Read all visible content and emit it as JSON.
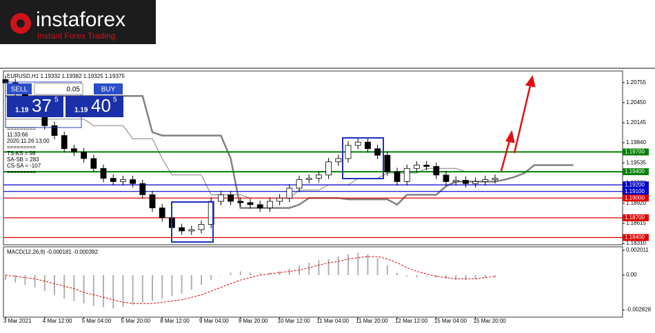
{
  "header": {
    "brand": "instaforex",
    "tagline": "Instant Forex Trading"
  },
  "trade_panel": {
    "sell": "SELL",
    "lot": "0.05",
    "buy": "BUY",
    "bid_big": "1.19",
    "bid_pips": "37",
    "bid_frac": "5",
    "ask_big": "1.19",
    "ask_pips": "40",
    "ask_frac": "5"
  },
  "info_lines": [
    "=========",
    "11:33:66",
    "2020.11.26 13:00",
    "=========",
    "TS-KS = 98",
    "SA-SB = 283",
    "CS-SA = -107",
    "========="
  ],
  "chart_data": {
    "type": "candlestick",
    "title": "EURUSD,H1  1.19332 1.19382 1.19325 1.19375",
    "categories": [
      "3 Mar 2021",
      null,
      null,
      null,
      "4 Mar 12:00",
      null,
      null,
      null,
      "5 Mar 04:00",
      null,
      null,
      null,
      "5 Mar 20:00",
      null,
      null,
      null,
      "8 Mar 12:00",
      null,
      null,
      null,
      "9 Mar 04:00",
      null,
      null,
      null,
      "9 Mar 20:00",
      null,
      null,
      null,
      "10 Mar 12:00",
      null,
      null,
      null,
      "11 Mar 04:00",
      null,
      null,
      null,
      "11 Mar 20:00",
      null,
      null,
      null,
      "12 Mar 12:00",
      null,
      null,
      null,
      "15 Mar 04:00",
      null,
      null,
      null,
      "15 Mar 20:00",
      null,
      null,
      null,
      null,
      null,
      null,
      null,
      null,
      null,
      null
    ],
    "open": [
      1.208,
      1.2075,
      1.206,
      1.2045,
      1.203,
      1.201,
      1.1995,
      1.1975,
      1.197,
      1.196,
      1.1945,
      1.193,
      1.1925,
      1.1928,
      1.1922,
      1.1905,
      1.1885,
      1.187,
      1.1855,
      1.185,
      1.1852,
      1.186,
      1.1895,
      1.1905,
      1.1895,
      1.1893,
      1.189,
      1.1885,
      1.1895,
      1.19,
      1.1915,
      1.1928,
      1.193,
      1.1935,
      1.1955,
      1.196,
      1.198,
      1.1985,
      1.1975,
      1.1965,
      1.194,
      1.1925,
      1.1945,
      1.195,
      1.1948,
      1.1935,
      1.1925,
      1.1927,
      1.1922,
      1.1925,
      1.1928,
      null,
      null,
      null,
      null,
      null,
      null,
      null,
      null
    ],
    "high": [
      1.2086,
      1.2081,
      1.2066,
      1.2051,
      1.2036,
      1.2016,
      1.2001,
      1.1981,
      1.1976,
      1.1966,
      1.1951,
      1.1936,
      1.1934,
      1.1934,
      1.1928,
      1.1911,
      1.1891,
      1.1876,
      1.1861,
      1.1858,
      1.1866,
      1.1901,
      1.1911,
      1.1911,
      1.1901,
      1.1899,
      1.1896,
      1.1901,
      1.1906,
      1.1921,
      1.1934,
      1.1936,
      1.1941,
      1.1961,
      1.1966,
      1.1986,
      1.1991,
      1.1991,
      1.1981,
      1.1971,
      1.1946,
      1.1951,
      1.1956,
      1.1956,
      1.1954,
      1.1941,
      1.1933,
      1.1933,
      1.1931,
      1.1934,
      1.1936,
      null,
      null,
      null,
      null,
      null,
      null,
      null,
      null
    ],
    "low": [
      1.2069,
      1.2054,
      1.2039,
      1.2024,
      1.2004,
      1.1989,
      1.1969,
      1.1964,
      1.1954,
      1.1939,
      1.1924,
      1.1919,
      1.1919,
      1.1916,
      1.1899,
      1.1879,
      1.1864,
      1.1849,
      1.1844,
      1.1844,
      1.1846,
      1.1854,
      1.1889,
      1.1889,
      1.1887,
      1.1884,
      1.1879,
      1.1879,
      1.1889,
      1.1894,
      1.1909,
      1.1922,
      1.1924,
      1.1929,
      1.1949,
      1.1954,
      1.1974,
      1.1969,
      1.1959,
      1.1934,
      1.1919,
      1.1919,
      1.1939,
      1.1942,
      1.1929,
      1.1919,
      1.1919,
      1.1916,
      1.1916,
      1.1919,
      1.1922,
      null,
      null,
      null,
      null,
      null,
      null,
      null,
      null
    ],
    "close": [
      1.2075,
      1.206,
      1.2045,
      1.203,
      1.201,
      1.1995,
      1.1975,
      1.197,
      1.196,
      1.1945,
      1.193,
      1.1925,
      1.1928,
      1.1922,
      1.1905,
      1.1885,
      1.187,
      1.1855,
      1.185,
      1.1852,
      1.186,
      1.1895,
      1.1905,
      1.1895,
      1.1893,
      1.189,
      1.1885,
      1.1895,
      1.19,
      1.1915,
      1.1928,
      1.193,
      1.1935,
      1.1955,
      1.196,
      1.198,
      1.1985,
      1.1975,
      1.1965,
      1.194,
      1.1925,
      1.1945,
      1.195,
      1.1948,
      1.1935,
      1.1925,
      1.1927,
      1.1922,
      1.1925,
      1.1928,
      1.193,
      null,
      null,
      null,
      null,
      null,
      null,
      null,
      null
    ],
    "ylim": [
      1.1829,
      1.2092
    ],
    "yticks": [
      {
        "value": 1.20755,
        "label": "1.20755"
      },
      {
        "value": 1.2045,
        "label": "1.20450"
      },
      {
        "value": 1.20145,
        "label": "1.20145"
      },
      {
        "value": 1.1984,
        "label": "1.19840"
      },
      {
        "value": 1.19535,
        "label": "1.19535"
      },
      {
        "value": 1.1923,
        "label": "1.19230"
      },
      {
        "value": 1.1892,
        "label": "1.18920"
      },
      {
        "value": 1.18615,
        "label": "1.18615"
      },
      {
        "value": 1.1831,
        "label": "1.18310"
      }
    ],
    "lines": [
      {
        "color": "#808080",
        "width": 2.5,
        "values": [
          1.2055,
          1.2055,
          1.2055,
          1.2055,
          1.2055,
          1.2055,
          1.2055,
          1.2055,
          1.2055,
          1.2055,
          1.2055,
          1.2055,
          1.2055,
          1.2055,
          1.2055,
          1.2,
          1.1995,
          1.1995,
          1.1995,
          1.1995,
          1.1995,
          1.1995,
          1.1995,
          1.196,
          1.1885,
          1.1885,
          1.1885,
          1.1885,
          1.1885,
          1.1885,
          1.189,
          1.19,
          1.19,
          1.19,
          1.19,
          1.1898,
          1.1898,
          1.1898,
          1.1898,
          1.1898,
          1.189,
          1.1905,
          1.1905,
          1.1905,
          1.1905,
          1.1918,
          1.1925,
          1.1925,
          1.1925,
          1.1925,
          1.1925,
          1.1928,
          1.1932,
          1.1938,
          1.195,
          1.195,
          1.195,
          1.195,
          1.195
        ]
      },
      {
        "color": "#808080",
        "width": 1,
        "values": [
          1.202,
          1.202,
          1.202,
          1.202,
          1.202,
          1.202,
          1.202,
          1.202,
          1.202,
          1.201,
          1.201,
          1.201,
          1.201,
          1.199,
          1.199,
          1.199,
          1.196,
          1.1935,
          1.1935,
          1.1935,
          1.1935,
          1.1905,
          1.1905,
          1.1905,
          1.1905,
          1.19,
          1.19,
          1.19,
          1.19,
          1.19,
          1.1912,
          1.1912,
          1.1912,
          1.192,
          1.192,
          1.192,
          1.193,
          1.193,
          1.193,
          1.1938,
          1.1938,
          1.1938,
          1.1938,
          1.1945,
          1.1945,
          1.1945,
          1.1945,
          1.194,
          1.194,
          1.194,
          1.194,
          null,
          null,
          null,
          null,
          null,
          null,
          null,
          null
        ]
      }
    ],
    "levels": {
      "values": [
        1.197,
        1.194,
        1.192,
        1.191,
        1.19,
        1.187,
        1.184
      ],
      "value_labels": [
        "1.19700",
        "1.19400",
        "1.19200",
        "1.19100",
        "1.19000",
        "1.18700",
        "1.18400"
      ],
      "colors": [
        "#008000",
        "#008000",
        "#0000cd",
        "#0000cd",
        "#e00000",
        "#e00000",
        "#e00000"
      ]
    },
    "macd": {
      "type": "bar",
      "title": "MACD(12,26,9) -0.000181 -0.000392",
      "ylim": [
        -0.003352,
        0.002234
      ],
      "yticks": [
        0.002011,
        {
          "value": 0,
          "label": "0.00"
        },
        -0.002828
      ],
      "bar_color": "#b0b0b0",
      "signal_color": "#e00000",
      "values": [
        -0.0004,
        -0.0006,
        -0.0008,
        -0.001,
        -0.0013,
        -0.0016,
        -0.0019,
        -0.0021,
        -0.0023,
        -0.0025,
        -0.0026,
        -0.0027,
        -0.0026,
        -0.0024,
        -0.0022,
        -0.0021,
        -0.0019,
        -0.0017,
        -0.0015,
        -0.0012,
        -0.0008,
        -0.0004,
        0,
        0.0002,
        0.0003,
        0.0002,
        0.0001,
        0.0002,
        0.0003,
        0.0005,
        0.0008,
        0.001,
        0.0012,
        0.0013,
        0.0015,
        0.0017,
        0.0018,
        0.0017,
        0.0014,
        0.0008,
        0.0002,
        -0.0001,
        -0.0002,
        -0.0001,
        -0.0002,
        -0.0003,
        -0.0004,
        -0.0004,
        -0.0003,
        -0.0002,
        -0.0002,
        null,
        null,
        null,
        null,
        null,
        null,
        null,
        null
      ],
      "signal": [
        0,
        -0.0001,
        -0.0002,
        -0.0003,
        -0.0005,
        -0.0007,
        -0.0009,
        -0.0011,
        -0.0014,
        -0.0016,
        -0.0018,
        -0.002,
        -0.0022,
        -0.0023,
        -0.0023,
        -0.0023,
        -0.0022,
        -0.0021,
        -0.002,
        -0.0018,
        -0.0016,
        -0.0013,
        -0.001,
        -0.0007,
        -0.0004,
        -0.0002,
        0,
        0.0001,
        0.0002,
        0.0003,
        0.0004,
        0.0006,
        0.0008,
        0.001,
        0.0011,
        0.0013,
        0.0014,
        0.0015,
        0.0015,
        0.0013,
        0.001,
        0.0006,
        0.0003,
        0.0001,
        -0.0001,
        -0.0002,
        -0.0003,
        -0.0003,
        -0.0003,
        -0.0002,
        -0.0001,
        null,
        null,
        null,
        null,
        null,
        null,
        null,
        null
      ]
    }
  }
}
